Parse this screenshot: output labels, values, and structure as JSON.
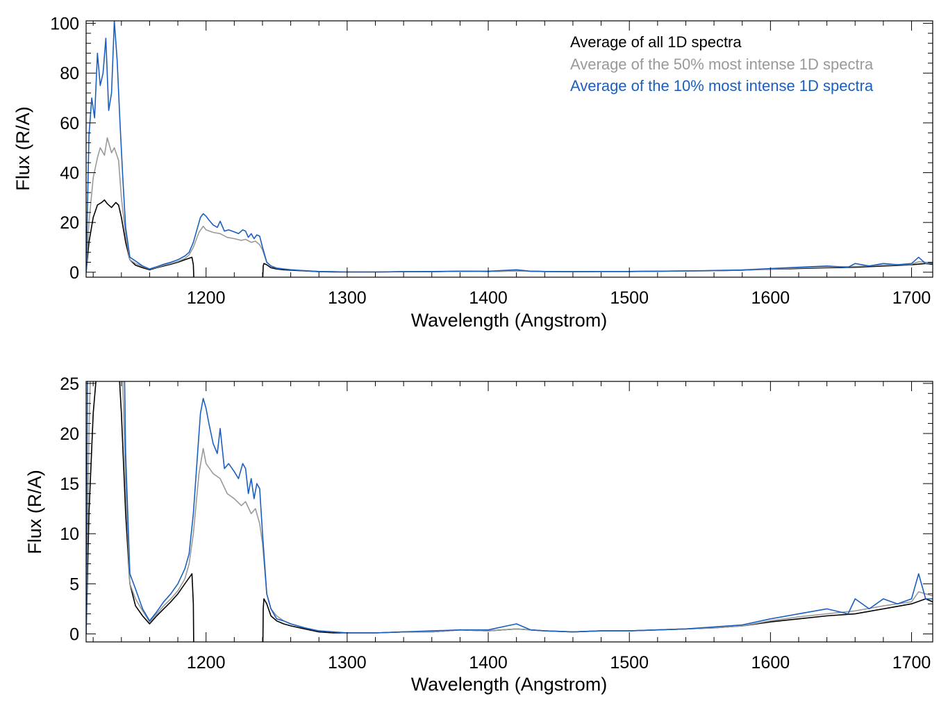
{
  "chart_data": [
    {
      "type": "line",
      "panel": "top",
      "xlabel": "Wavelength (Angstrom)",
      "ylabel": "Flux (R/A)",
      "xlim": [
        1115,
        1715
      ],
      "ylim": [
        -2,
        101
      ],
      "xticks": [
        1200,
        1300,
        1400,
        1500,
        1600,
        1700
      ],
      "yticks": [
        0,
        20,
        40,
        60,
        80,
        100
      ],
      "legend": {
        "placement": "top-right",
        "entries": [
          {
            "label": "Average of all 1D spectra",
            "color": "#000000"
          },
          {
            "label": "Average of the 50% most intense 1D spectra",
            "color": "#999999"
          },
          {
            "label": "Average of the 10% most intense 1D spectra",
            "color": "#1a5fbf"
          }
        ]
      }
    },
    {
      "type": "line",
      "panel": "bottom",
      "xlabel": "Wavelength (Angstrom)",
      "ylabel": "Flux (R/A)",
      "xlim": [
        1115,
        1715
      ],
      "ylim": [
        -0.8,
        25.2
      ],
      "xticks": [
        1200,
        1300,
        1400,
        1500,
        1600,
        1700
      ],
      "yticks": [
        0,
        5,
        10,
        15,
        20,
        25
      ]
    }
  ],
  "series": [
    {
      "name": "Average of all 1D spectra",
      "color": "#000000",
      "x": [
        1115,
        1117,
        1120,
        1123,
        1126,
        1128,
        1130,
        1133,
        1136,
        1138,
        1140,
        1143,
        1146,
        1150,
        1155,
        1160,
        1165,
        1170,
        1175,
        1180,
        1185,
        1188,
        1190,
        1191,
        1191.5,
        1240,
        1240.5,
        1241,
        1243,
        1246,
        1250,
        1255,
        1260,
        1270,
        1280,
        1290,
        1300,
        1320,
        1340,
        1360,
        1380,
        1400,
        1420,
        1440,
        1460,
        1480,
        1500,
        1520,
        1540,
        1560,
        1580,
        1600,
        1620,
        1640,
        1660,
        1680,
        1700,
        1710,
        1715
      ],
      "y": [
        0,
        12,
        22,
        27,
        28,
        29,
        27.5,
        26,
        28,
        27,
        22,
        12,
        5,
        2.8,
        1.8,
        1.0,
        1.8,
        2.5,
        3.2,
        4.0,
        5.0,
        5.6,
        6.0,
        3.0,
        -5,
        -5,
        2.5,
        3.5,
        3.0,
        1.8,
        1.3,
        1.0,
        0.8,
        0.5,
        0.2,
        0.1,
        0.1,
        0.1,
        0.2,
        0.2,
        0.4,
        0.3,
        0.5,
        0.3,
        0.2,
        0.3,
        0.3,
        0.4,
        0.5,
        0.6,
        0.8,
        1.2,
        1.5,
        1.8,
        2.0,
        2.5,
        3.0,
        3.5,
        3.2
      ]
    },
    {
      "name": "Average of the 50% most intense 1D spectra",
      "color": "#999999",
      "x": [
        1115,
        1117,
        1120,
        1123,
        1125,
        1128,
        1130,
        1133,
        1135,
        1138,
        1140,
        1143,
        1146,
        1150,
        1155,
        1160,
        1165,
        1170,
        1175,
        1180,
        1185,
        1188,
        1191,
        1195,
        1198,
        1200,
        1205,
        1210,
        1215,
        1220,
        1225,
        1228,
        1232,
        1235,
        1238,
        1240,
        1243,
        1246,
        1250,
        1255,
        1260,
        1270,
        1280,
        1290,
        1300,
        1320,
        1340,
        1360,
        1380,
        1400,
        1420,
        1440,
        1460,
        1480,
        1500,
        1520,
        1540,
        1560,
        1580,
        1600,
        1620,
        1640,
        1660,
        1680,
        1690,
        1700,
        1705,
        1710,
        1715
      ],
      "y": [
        0,
        20,
        38,
        46,
        50,
        47,
        54,
        48,
        50,
        45,
        30,
        15,
        5,
        3.5,
        2.3,
        1.2,
        2.0,
        2.8,
        3.5,
        4.3,
        5.5,
        7.0,
        10,
        16,
        18.5,
        17,
        16,
        15.5,
        14,
        13.5,
        12.8,
        13.2,
        12,
        12.5,
        11,
        9,
        4,
        2.5,
        1.8,
        1.3,
        1.0,
        0.6,
        0.3,
        0.2,
        0.1,
        0.1,
        0.2,
        0.2,
        0.4,
        0.3,
        0.5,
        0.3,
        0.2,
        0.3,
        0.3,
        0.4,
        0.5,
        0.6,
        0.8,
        1.3,
        1.7,
        2.0,
        2.3,
        2.8,
        3.0,
        3.2,
        4.2,
        4.0,
        3.8
      ]
    },
    {
      "name": "Average of the 10% most intense 1D spectra",
      "color": "#1a5fbf",
      "x": [
        1115,
        1117,
        1119,
        1121,
        1123,
        1125,
        1127,
        1129,
        1131,
        1133,
        1135,
        1137,
        1139,
        1141,
        1143,
        1146,
        1150,
        1155,
        1160,
        1165,
        1170,
        1175,
        1180,
        1185,
        1188,
        1191,
        1194,
        1196,
        1198,
        1200,
        1202,
        1205,
        1208,
        1210,
        1213,
        1216,
        1220,
        1223,
        1226,
        1228,
        1230,
        1232,
        1234,
        1236,
        1238,
        1240,
        1243,
        1246,
        1250,
        1255,
        1260,
        1270,
        1280,
        1290,
        1300,
        1320,
        1340,
        1360,
        1380,
        1400,
        1420,
        1430,
        1440,
        1460,
        1480,
        1500,
        1520,
        1540,
        1560,
        1580,
        1600,
        1620,
        1640,
        1655,
        1660,
        1670,
        1680,
        1690,
        1700,
        1705,
        1710,
        1715
      ],
      "y": [
        0,
        55,
        70,
        62,
        88,
        75,
        80,
        94,
        65,
        72,
        101,
        85,
        60,
        38,
        18,
        6,
        4.5,
        2.5,
        1.3,
        2.2,
        3.2,
        4.0,
        5.0,
        6.5,
        8.0,
        12,
        18,
        22,
        23.5,
        22.5,
        21,
        19,
        18,
        20.5,
        16.5,
        17,
        16.2,
        15.5,
        17,
        16.5,
        14,
        15.5,
        13.5,
        15,
        14.5,
        10,
        4,
        2.5,
        1.5,
        1.3,
        1.0,
        0.6,
        0.3,
        0.2,
        0.1,
        0.1,
        0.2,
        0.3,
        0.4,
        0.4,
        1.0,
        0.4,
        0.3,
        0.2,
        0.3,
        0.3,
        0.4,
        0.5,
        0.7,
        0.9,
        1.5,
        2.0,
        2.5,
        2.0,
        3.5,
        2.5,
        3.5,
        3.0,
        3.5,
        6.0,
        3.5,
        3.5
      ]
    }
  ]
}
